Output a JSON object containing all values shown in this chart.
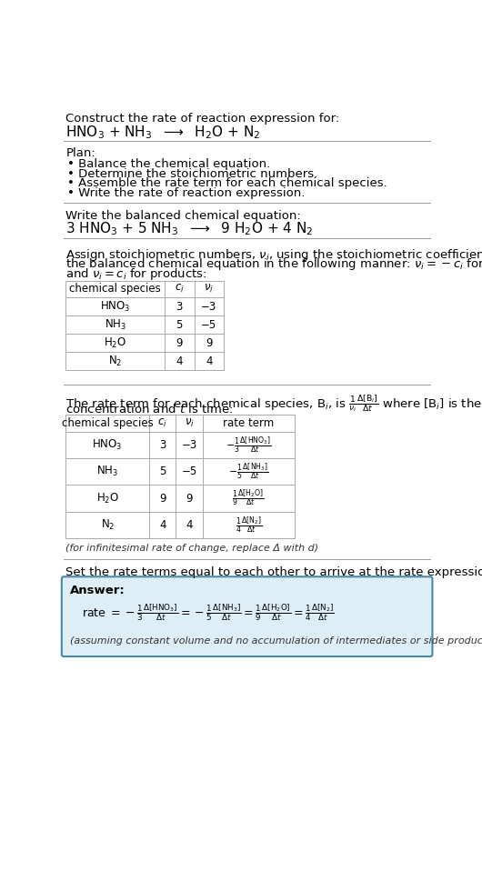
{
  "bg_color": "#ffffff",
  "text_color": "#000000",
  "title_line1": "Construct the rate of reaction expression for:",
  "plan_header": "Plan:",
  "plan_items": [
    "• Balance the chemical equation.",
    "• Determine the stoichiometric numbers.",
    "• Assemble the rate term for each chemical species.",
    "• Write the rate of reaction expression."
  ],
  "balanced_header": "Write the balanced chemical equation:",
  "stoich_header_parts": [
    "Assign stoichiometric numbers, $\\nu_i$, using the stoichiometric coefficients, $c_i$, from",
    "the balanced chemical equation in the following manner: $\\nu_i = -c_i$ for reactants",
    "and $\\nu_i = c_i$ for products:"
  ],
  "table1_cols": [
    "chemical species",
    "$c_i$",
    "$\\nu_i$"
  ],
  "table1_rows": [
    [
      "HNO$_3$",
      "3",
      "−3"
    ],
    [
      "NH$_3$",
      "5",
      "−5"
    ],
    [
      "H$_2$O",
      "9",
      "9"
    ],
    [
      "N$_2$",
      "4",
      "4"
    ]
  ],
  "rate_term_header_parts": [
    "concentration and $t$ is time:"
  ],
  "table2_cols": [
    "chemical species",
    "$c_i$",
    "$\\nu_i$",
    "rate term"
  ],
  "table2_rows": [
    [
      "HNO$_3$",
      "3",
      "−3"
    ],
    [
      "NH$_3$",
      "5",
      "−5"
    ],
    [
      "H$_2$O",
      "9",
      "9"
    ],
    [
      "N$_2$",
      "4",
      "4"
    ]
  ],
  "table2_rate_terms": [
    "$-\\frac{1}{3}\\frac{\\Delta[\\mathrm{HNO_3}]}{\\Delta t}$",
    "$-\\frac{1}{5}\\frac{\\Delta[\\mathrm{NH_3}]}{\\Delta t}$",
    "$\\frac{1}{9}\\frac{\\Delta[\\mathrm{H_2O}]}{\\Delta t}$",
    "$\\frac{1}{4}\\frac{\\Delta[\\mathrm{N_2}]}{\\Delta t}$"
  ],
  "infinitesimal_note": "(for infinitesimal rate of change, replace Δ with d)",
  "set_equal_header": "Set the rate terms equal to each other to arrive at the rate expression:",
  "answer_box_color": "#ddeef6",
  "answer_border_color": "#4488aa",
  "answer_label": "Answer:",
  "answer_note": "(assuming constant volume and no accumulation of intermediates or side products)",
  "line_color": "#999999",
  "table_line_color": "#aaaaaa"
}
